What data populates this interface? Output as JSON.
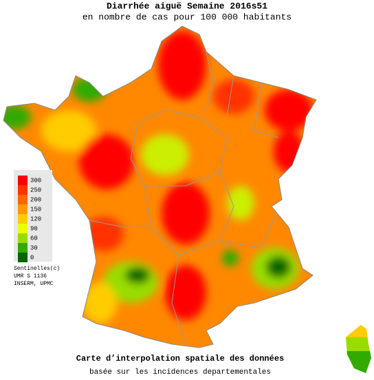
{
  "header": {
    "title": "Diarrhée aiguë Semaine 2016s51",
    "subtitle": "en nombre de cas pour 100 000 habitants"
  },
  "legend": {
    "items": [
      {
        "label": 300,
        "color": "#ff0000"
      },
      {
        "label": 250,
        "color": "#ff3300"
      },
      {
        "label": 200,
        "color": "#ff6600"
      },
      {
        "label": 150,
        "color": "#ff9900"
      },
      {
        "label": 120,
        "color": "#ffcc00"
      },
      {
        "label": 90,
        "color": "#eeff00"
      },
      {
        "label": 60,
        "color": "#99dd00"
      },
      {
        "label": 30,
        "color": "#33aa00"
      },
      {
        "label": 0,
        "color": "#006600"
      }
    ]
  },
  "credits": [
    "Sentinelles(c)",
    "UMR S 1136",
    "INSERM, UPMC"
  ],
  "footer": {
    "line1": "Carte d’interpolation spatiale des données",
    "line2": "basée sur les incidences departementales"
  }
}
